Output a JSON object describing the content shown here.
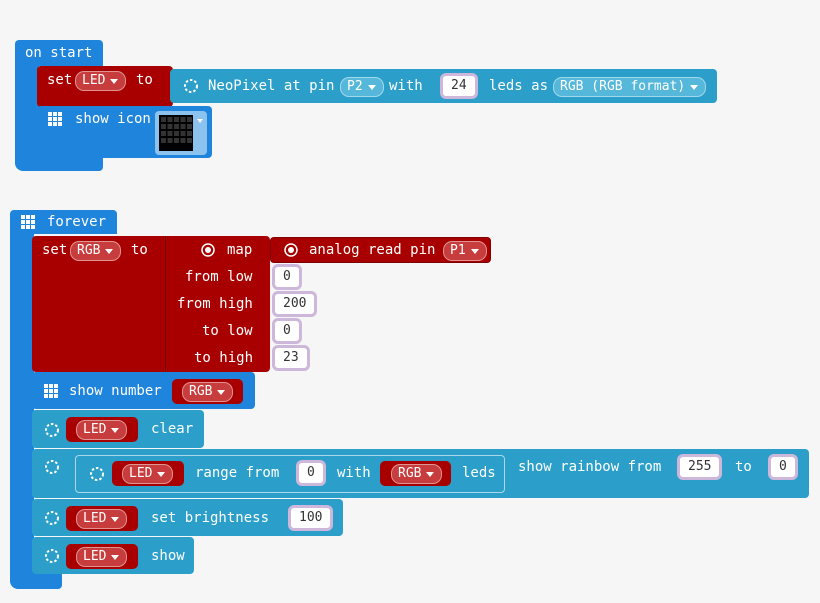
{
  "on_start": {
    "label": "on start",
    "set_block": {
      "keyword": "set",
      "variable": "LED",
      "to": "to"
    },
    "neopixel_block": {
      "label": "NeoPixel at pin",
      "pin": "P2",
      "with": "with",
      "leds": 24,
      "leds_as": "leds as",
      "mode": "RGB (RGB format)"
    },
    "show_icon_block": {
      "label": "show icon"
    }
  },
  "forever": {
    "label": "forever",
    "set_block": {
      "keyword": "set",
      "variable": "RGB",
      "to": "to"
    },
    "map_block": {
      "label": "map",
      "analog_label": "analog read pin",
      "pin": "P1",
      "rows": [
        {
          "label": "from low",
          "value": 0
        },
        {
          "label": "from high",
          "value": 200
        },
        {
          "label": "to low",
          "value": 0
        },
        {
          "label": "to high",
          "value": 23
        }
      ]
    },
    "show_number_block": {
      "label": "show number",
      "variable": "RGB"
    },
    "clear_block": {
      "variable": "LED",
      "label": "clear"
    },
    "rainbow_block": {
      "variable": "LED",
      "range_label": "range from",
      "start": 0,
      "with": "with",
      "length_variable": "RGB",
      "leds": "leds",
      "label": "show rainbow from",
      "from": 255,
      "to_label": "to",
      "to": 0
    },
    "brightness_block": {
      "variable": "LED",
      "label": "set brightness",
      "value": 100
    },
    "show_block": {
      "variable": "LED",
      "label": "show"
    }
  }
}
